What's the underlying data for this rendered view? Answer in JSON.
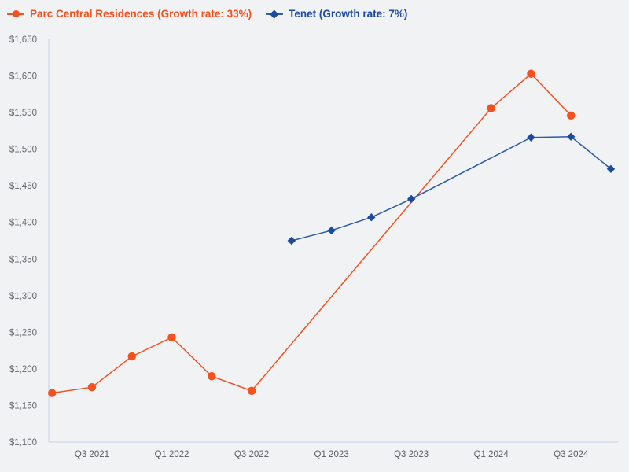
{
  "chart_data": {
    "type": "line",
    "background_color": "#f1f2f4",
    "axis_color": "#ccd7e9",
    "grid": false,
    "legend_position": "top-left",
    "x_categories": [
      "Q2 2021",
      "Q3 2021",
      "Q4 2021",
      "Q1 2022",
      "Q2 2022",
      "Q3 2022",
      "Q4 2022",
      "Q1 2023",
      "Q2 2023",
      "Q3 2023",
      "Q4 2023",
      "Q1 2024",
      "Q2 2024",
      "Q3 2024",
      "Q4 2024"
    ],
    "x_tick_labels": [
      "Q3 2021",
      "Q1 2022",
      "Q3 2022",
      "Q1 2023",
      "Q3 2023",
      "Q1 2024",
      "Q3 2024"
    ],
    "ylim": [
      1100,
      1650
    ],
    "y_ticks": [
      {
        "value": 1650,
        "label": "$1,650"
      },
      {
        "value": 1600,
        "label": "$1,600"
      },
      {
        "value": 1550,
        "label": "$1,550"
      },
      {
        "value": 1500,
        "label": "$1,500"
      },
      {
        "value": 1450,
        "label": "$1,450"
      },
      {
        "value": 1400,
        "label": "$1,400"
      },
      {
        "value": 1350,
        "label": "$1,350"
      },
      {
        "value": 1300,
        "label": "$1,300"
      },
      {
        "value": 1250,
        "label": "$1,250"
      },
      {
        "value": 1200,
        "label": "$1,200"
      },
      {
        "value": 1150,
        "label": "$1,150"
      },
      {
        "value": 1100,
        "label": "$1,100"
      }
    ],
    "series": [
      {
        "name": "Parc Central Residences (Growth rate: 33%)",
        "growth_rate": "33%",
        "color": "#f4511e",
        "marker_color": "#f4511e",
        "marker": "circle",
        "points": [
          {
            "x": "Q2 2021",
            "y": 1167
          },
          {
            "x": "Q3 2021",
            "y": 1175
          },
          {
            "x": "Q4 2021",
            "y": 1217
          },
          {
            "x": "Q1 2022",
            "y": 1243
          },
          {
            "x": "Q2 2022",
            "y": 1190
          },
          {
            "x": "Q3 2022",
            "y": 1170
          },
          {
            "x": "Q1 2024",
            "y": 1556
          },
          {
            "x": "Q2 2024",
            "y": 1603
          },
          {
            "x": "Q3 2024",
            "y": 1546
          }
        ]
      },
      {
        "name": "Tenet (Growth rate: 7%)",
        "growth_rate": "7%",
        "color": "#2a5aa8",
        "marker_color": "#1e4a9e",
        "marker": "diamond",
        "points": [
          {
            "x": "Q4 2022",
            "y": 1375
          },
          {
            "x": "Q1 2023",
            "y": 1389
          },
          {
            "x": "Q2 2023",
            "y": 1407
          },
          {
            "x": "Q3 2023",
            "y": 1432
          },
          {
            "x": "Q2 2024",
            "y": 1516
          },
          {
            "x": "Q3 2024",
            "y": 1517
          },
          {
            "x": "Q4 2024",
            "y": 1473
          }
        ]
      }
    ]
  }
}
